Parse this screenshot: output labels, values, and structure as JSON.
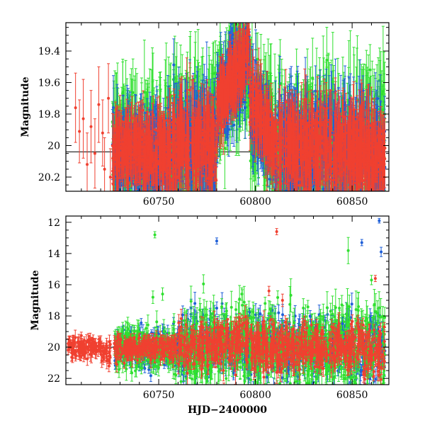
{
  "colors": {
    "blue": "#2060d8",
    "green": "#30e030",
    "red": "#f04030",
    "baseline": "#000000"
  },
  "chart_data": [
    {
      "type": "scatter",
      "panel": "top",
      "ylabel": "Magnitude",
      "xlim": [
        60702,
        60869
      ],
      "ylim": [
        20.29,
        19.22
      ],
      "y_inverted": true,
      "xticks": [
        60750,
        60800,
        60850
      ],
      "xtick_labels": [
        "60750",
        "60800",
        "60850"
      ],
      "yticks": [
        19.4,
        19.6,
        19.8,
        20,
        20.2
      ],
      "ytick_labels": [
        "19.4",
        "19.6",
        "19.8",
        "20",
        "20.2"
      ],
      "reference_line": 20.04,
      "series": [
        {
          "color": "red",
          "values": [
            [
              60707,
              19.76,
              0.22
            ],
            [
              60709,
              19.91,
              0.2
            ],
            [
              60711,
              19.83,
              0.25
            ],
            [
              60713,
              20.12,
              0.2
            ],
            [
              60715,
              19.88,
              0.23
            ],
            [
              60717,
              20.05,
              0.22
            ],
            [
              60719,
              19.74,
              0.24
            ],
            [
              60721,
              19.92,
              0.21
            ],
            [
              60722,
              20.15,
              0.2
            ],
            [
              60724,
              19.7,
              0.22
            ],
            [
              60725,
              20.2,
              0.18
            ]
          ]
        }
      ],
      "dense_segments": [
        {
          "x_start": 60726,
          "x_end": 60757,
          "mag_center": 20.04,
          "spread": 0.12,
          "error": 0.15
        },
        {
          "x_start": 60757,
          "x_end": 60780,
          "mag_center": 20.0,
          "spread": 0.14,
          "error": 0.18
        },
        {
          "x_start": 60780,
          "x_end": 60797,
          "mag_center": 19.75,
          "spread": 0.1,
          "error": 0.15,
          "trend_to": 19.4
        },
        {
          "x_start": 60797,
          "x_end": 60812,
          "mag_center": 19.7,
          "spread": 0.1,
          "error": 0.15,
          "trend_to": 20.05
        },
        {
          "x_start": 60812,
          "x_end": 60840,
          "mag_center": 20.02,
          "spread": 0.14,
          "error": 0.18
        },
        {
          "x_start": 60840,
          "x_end": 60867,
          "mag_center": 20.05,
          "spread": 0.14,
          "error": 0.18
        }
      ]
    },
    {
      "type": "scatter",
      "panel": "bottom",
      "xlabel": "HJD−2400000",
      "ylabel": "Magnitude",
      "xlim": [
        60702,
        60869
      ],
      "ylim": [
        22.4,
        11.6
      ],
      "y_inverted": true,
      "xticks": [
        60750,
        60800,
        60850
      ],
      "xtick_labels": [
        "60750",
        "60800",
        "60850"
      ],
      "yticks": [
        12,
        14,
        16,
        18,
        20,
        22
      ],
      "ytick_labels": [
        "12",
        "14",
        "16",
        "18",
        "20",
        "22"
      ],
      "reference_line": 20.0,
      "outliers": [
        {
          "color": "green",
          "x": 60748,
          "y": 12.8,
          "err": 0.2
        },
        {
          "color": "blue",
          "x": 60780,
          "y": 13.2,
          "err": 0.2
        },
        {
          "color": "red",
          "x": 60811,
          "y": 12.6,
          "err": 0.2
        },
        {
          "color": "blue",
          "x": 60855,
          "y": 13.3,
          "err": 0.2
        },
        {
          "color": "blue",
          "x": 60864,
          "y": 11.9,
          "err": 0.15
        },
        {
          "color": "blue",
          "x": 60865,
          "y": 13.9,
          "err": 0.3
        },
        {
          "color": "red",
          "x": 60862,
          "y": 15.6,
          "err": 0.2
        },
        {
          "color": "green",
          "x": 60860,
          "y": 15.7,
          "err": 0.3
        },
        {
          "color": "green",
          "x": 60747,
          "y": 16.8,
          "err": 0.4
        },
        {
          "color": "green",
          "x": 60752,
          "y": 16.6,
          "err": 0.4
        },
        {
          "color": "red",
          "x": 60807,
          "y": 16.4,
          "err": 0.3
        },
        {
          "color": "green",
          "x": 60793,
          "y": 16.6,
          "err": 0.4
        },
        {
          "color": "blue",
          "x": 60780,
          "y": 17.5,
          "err": 0.4
        },
        {
          "color": "blue",
          "x": 60812,
          "y": 17.8,
          "err": 0.5
        },
        {
          "color": "green",
          "x": 60805,
          "y": 17.2,
          "err": 0.4
        },
        {
          "color": "red",
          "x": 60814,
          "y": 17.0,
          "err": 0.4
        },
        {
          "color": "blue",
          "x": 60845,
          "y": 18.5,
          "err": 0.4
        },
        {
          "color": "green",
          "x": 60835,
          "y": 18.2,
          "err": 0.4
        }
      ],
      "dense_segments": [
        {
          "x_start": 60703,
          "x_end": 60720,
          "mag_center": 20.0,
          "spread": 0.35,
          "error": 0.35,
          "colors": [
            "red"
          ]
        },
        {
          "x_start": 60720,
          "x_end": 60725,
          "mag_center": 20.4,
          "spread": 0.4,
          "error": 0.4,
          "colors": [
            "red"
          ]
        },
        {
          "x_start": 60727,
          "x_end": 60760,
          "mag_center": 20.1,
          "spread": 0.5,
          "error": 0.35,
          "colors": [
            "blue",
            "green",
            "red"
          ]
        },
        {
          "x_start": 60760,
          "x_end": 60797,
          "mag_center": 20.05,
          "spread": 0.9,
          "error": 0.5,
          "colors": [
            "blue",
            "green",
            "red"
          ],
          "trend_to": 19.7
        },
        {
          "x_start": 60797,
          "x_end": 60840,
          "mag_center": 20.0,
          "spread": 0.9,
          "error": 0.5,
          "colors": [
            "blue",
            "green",
            "red"
          ]
        },
        {
          "x_start": 60840,
          "x_end": 60867,
          "mag_center": 20.05,
          "spread": 1.0,
          "error": 0.5,
          "colors": [
            "blue",
            "green",
            "red"
          ]
        }
      ]
    }
  ]
}
